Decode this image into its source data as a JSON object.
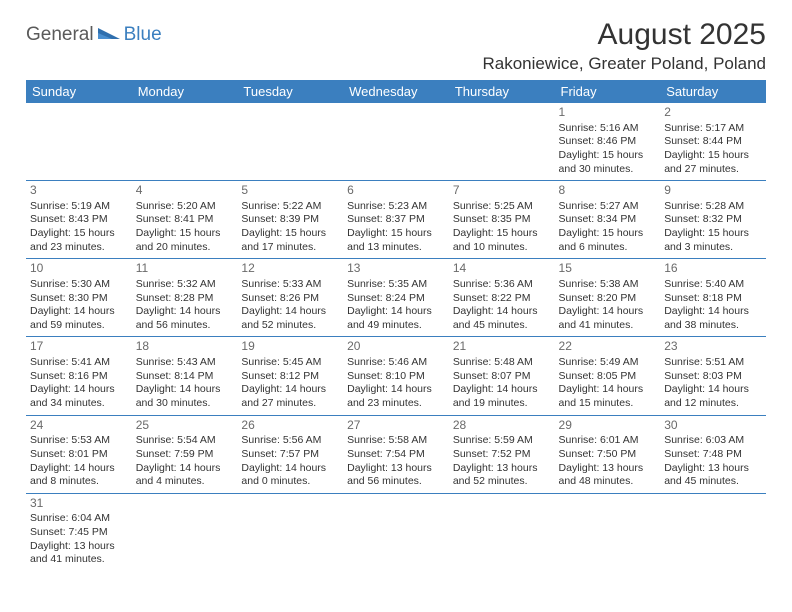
{
  "logo": {
    "text1": "General",
    "text2": "Blue"
  },
  "title": "August 2025",
  "location": "Rakoniewice, Greater Poland, Poland",
  "colors": {
    "header_bg": "#3b7fbf",
    "header_text": "#ffffff",
    "row_border": "#3b7fbf",
    "daynum": "#6a6a6a",
    "body_text": "#333333",
    "logo_gray": "#5a5a5a",
    "logo_blue": "#3b7fbf"
  },
  "days_of_week": [
    "Sunday",
    "Monday",
    "Tuesday",
    "Wednesday",
    "Thursday",
    "Friday",
    "Saturday"
  ],
  "weeks": [
    [
      null,
      null,
      null,
      null,
      null,
      {
        "n": "1",
        "sunrise": "Sunrise: 5:16 AM",
        "sunset": "Sunset: 8:46 PM",
        "day1": "Daylight: 15 hours",
        "day2": "and 30 minutes."
      },
      {
        "n": "2",
        "sunrise": "Sunrise: 5:17 AM",
        "sunset": "Sunset: 8:44 PM",
        "day1": "Daylight: 15 hours",
        "day2": "and 27 minutes."
      }
    ],
    [
      {
        "n": "3",
        "sunrise": "Sunrise: 5:19 AM",
        "sunset": "Sunset: 8:43 PM",
        "day1": "Daylight: 15 hours",
        "day2": "and 23 minutes."
      },
      {
        "n": "4",
        "sunrise": "Sunrise: 5:20 AM",
        "sunset": "Sunset: 8:41 PM",
        "day1": "Daylight: 15 hours",
        "day2": "and 20 minutes."
      },
      {
        "n": "5",
        "sunrise": "Sunrise: 5:22 AM",
        "sunset": "Sunset: 8:39 PM",
        "day1": "Daylight: 15 hours",
        "day2": "and 17 minutes."
      },
      {
        "n": "6",
        "sunrise": "Sunrise: 5:23 AM",
        "sunset": "Sunset: 8:37 PM",
        "day1": "Daylight: 15 hours",
        "day2": "and 13 minutes."
      },
      {
        "n": "7",
        "sunrise": "Sunrise: 5:25 AM",
        "sunset": "Sunset: 8:35 PM",
        "day1": "Daylight: 15 hours",
        "day2": "and 10 minutes."
      },
      {
        "n": "8",
        "sunrise": "Sunrise: 5:27 AM",
        "sunset": "Sunset: 8:34 PM",
        "day1": "Daylight: 15 hours",
        "day2": "and 6 minutes."
      },
      {
        "n": "9",
        "sunrise": "Sunrise: 5:28 AM",
        "sunset": "Sunset: 8:32 PM",
        "day1": "Daylight: 15 hours",
        "day2": "and 3 minutes."
      }
    ],
    [
      {
        "n": "10",
        "sunrise": "Sunrise: 5:30 AM",
        "sunset": "Sunset: 8:30 PM",
        "day1": "Daylight: 14 hours",
        "day2": "and 59 minutes."
      },
      {
        "n": "11",
        "sunrise": "Sunrise: 5:32 AM",
        "sunset": "Sunset: 8:28 PM",
        "day1": "Daylight: 14 hours",
        "day2": "and 56 minutes."
      },
      {
        "n": "12",
        "sunrise": "Sunrise: 5:33 AM",
        "sunset": "Sunset: 8:26 PM",
        "day1": "Daylight: 14 hours",
        "day2": "and 52 minutes."
      },
      {
        "n": "13",
        "sunrise": "Sunrise: 5:35 AM",
        "sunset": "Sunset: 8:24 PM",
        "day1": "Daylight: 14 hours",
        "day2": "and 49 minutes."
      },
      {
        "n": "14",
        "sunrise": "Sunrise: 5:36 AM",
        "sunset": "Sunset: 8:22 PM",
        "day1": "Daylight: 14 hours",
        "day2": "and 45 minutes."
      },
      {
        "n": "15",
        "sunrise": "Sunrise: 5:38 AM",
        "sunset": "Sunset: 8:20 PM",
        "day1": "Daylight: 14 hours",
        "day2": "and 41 minutes."
      },
      {
        "n": "16",
        "sunrise": "Sunrise: 5:40 AM",
        "sunset": "Sunset: 8:18 PM",
        "day1": "Daylight: 14 hours",
        "day2": "and 38 minutes."
      }
    ],
    [
      {
        "n": "17",
        "sunrise": "Sunrise: 5:41 AM",
        "sunset": "Sunset: 8:16 PM",
        "day1": "Daylight: 14 hours",
        "day2": "and 34 minutes."
      },
      {
        "n": "18",
        "sunrise": "Sunrise: 5:43 AM",
        "sunset": "Sunset: 8:14 PM",
        "day1": "Daylight: 14 hours",
        "day2": "and 30 minutes."
      },
      {
        "n": "19",
        "sunrise": "Sunrise: 5:45 AM",
        "sunset": "Sunset: 8:12 PM",
        "day1": "Daylight: 14 hours",
        "day2": "and 27 minutes."
      },
      {
        "n": "20",
        "sunrise": "Sunrise: 5:46 AM",
        "sunset": "Sunset: 8:10 PM",
        "day1": "Daylight: 14 hours",
        "day2": "and 23 minutes."
      },
      {
        "n": "21",
        "sunrise": "Sunrise: 5:48 AM",
        "sunset": "Sunset: 8:07 PM",
        "day1": "Daylight: 14 hours",
        "day2": "and 19 minutes."
      },
      {
        "n": "22",
        "sunrise": "Sunrise: 5:49 AM",
        "sunset": "Sunset: 8:05 PM",
        "day1": "Daylight: 14 hours",
        "day2": "and 15 minutes."
      },
      {
        "n": "23",
        "sunrise": "Sunrise: 5:51 AM",
        "sunset": "Sunset: 8:03 PM",
        "day1": "Daylight: 14 hours",
        "day2": "and 12 minutes."
      }
    ],
    [
      {
        "n": "24",
        "sunrise": "Sunrise: 5:53 AM",
        "sunset": "Sunset: 8:01 PM",
        "day1": "Daylight: 14 hours",
        "day2": "and 8 minutes."
      },
      {
        "n": "25",
        "sunrise": "Sunrise: 5:54 AM",
        "sunset": "Sunset: 7:59 PM",
        "day1": "Daylight: 14 hours",
        "day2": "and 4 minutes."
      },
      {
        "n": "26",
        "sunrise": "Sunrise: 5:56 AM",
        "sunset": "Sunset: 7:57 PM",
        "day1": "Daylight: 14 hours",
        "day2": "and 0 minutes."
      },
      {
        "n": "27",
        "sunrise": "Sunrise: 5:58 AM",
        "sunset": "Sunset: 7:54 PM",
        "day1": "Daylight: 13 hours",
        "day2": "and 56 minutes."
      },
      {
        "n": "28",
        "sunrise": "Sunrise: 5:59 AM",
        "sunset": "Sunset: 7:52 PM",
        "day1": "Daylight: 13 hours",
        "day2": "and 52 minutes."
      },
      {
        "n": "29",
        "sunrise": "Sunrise: 6:01 AM",
        "sunset": "Sunset: 7:50 PM",
        "day1": "Daylight: 13 hours",
        "day2": "and 48 minutes."
      },
      {
        "n": "30",
        "sunrise": "Sunrise: 6:03 AM",
        "sunset": "Sunset: 7:48 PM",
        "day1": "Daylight: 13 hours",
        "day2": "and 45 minutes."
      }
    ],
    [
      {
        "n": "31",
        "sunrise": "Sunrise: 6:04 AM",
        "sunset": "Sunset: 7:45 PM",
        "day1": "Daylight: 13 hours",
        "day2": "and 41 minutes."
      },
      null,
      null,
      null,
      null,
      null,
      null
    ]
  ]
}
